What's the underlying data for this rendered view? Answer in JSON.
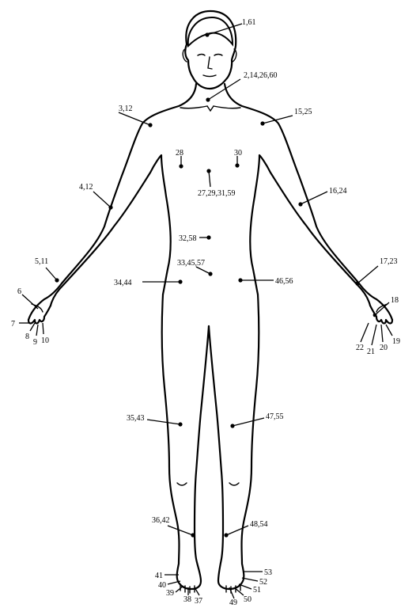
{
  "diagram": {
    "type": "anatomical-body-outline",
    "view": "anterior",
    "points": [
      {
        "id": "p01",
        "label": "1,61"
      },
      {
        "id": "p02",
        "label": "2,14,26,60"
      },
      {
        "id": "p03",
        "label": "3,12"
      },
      {
        "id": "p04",
        "label": "15,25"
      },
      {
        "id": "p05",
        "label": "28"
      },
      {
        "id": "p06",
        "label": "30"
      },
      {
        "id": "p07",
        "label": "27,29,31,59"
      },
      {
        "id": "p08",
        "label": "4,12"
      },
      {
        "id": "p09",
        "label": "16,24"
      },
      {
        "id": "p10",
        "label": "32,58"
      },
      {
        "id": "p11",
        "label": "33,45,57"
      },
      {
        "id": "p12",
        "label": "5,11"
      },
      {
        "id": "p13",
        "label": "17,23"
      },
      {
        "id": "p14",
        "label": "34,44"
      },
      {
        "id": "p15",
        "label": "46,56"
      },
      {
        "id": "p16",
        "label": "6"
      },
      {
        "id": "p17",
        "label": "7"
      },
      {
        "id": "p18",
        "label": "8"
      },
      {
        "id": "p19",
        "label": "9"
      },
      {
        "id": "p20",
        "label": "10"
      },
      {
        "id": "p21",
        "label": "18"
      },
      {
        "id": "p22",
        "label": "19"
      },
      {
        "id": "p23",
        "label": "20"
      },
      {
        "id": "p24",
        "label": "21"
      },
      {
        "id": "p25",
        "label": "22"
      },
      {
        "id": "p26",
        "label": "35,43"
      },
      {
        "id": "p27",
        "label": "47,55"
      },
      {
        "id": "p28",
        "label": "36,42"
      },
      {
        "id": "p29",
        "label": "48,54"
      },
      {
        "id": "p30",
        "label": "41"
      },
      {
        "id": "p31",
        "label": "40"
      },
      {
        "id": "p32",
        "label": "39"
      },
      {
        "id": "p33",
        "label": "38"
      },
      {
        "id": "p34",
        "label": "37"
      },
      {
        "id": "p35",
        "label": "53"
      },
      {
        "id": "p36",
        "label": "52"
      },
      {
        "id": "p37",
        "label": "51"
      },
      {
        "id": "p38",
        "label": "50"
      },
      {
        "id": "p39",
        "label": "49"
      }
    ]
  }
}
